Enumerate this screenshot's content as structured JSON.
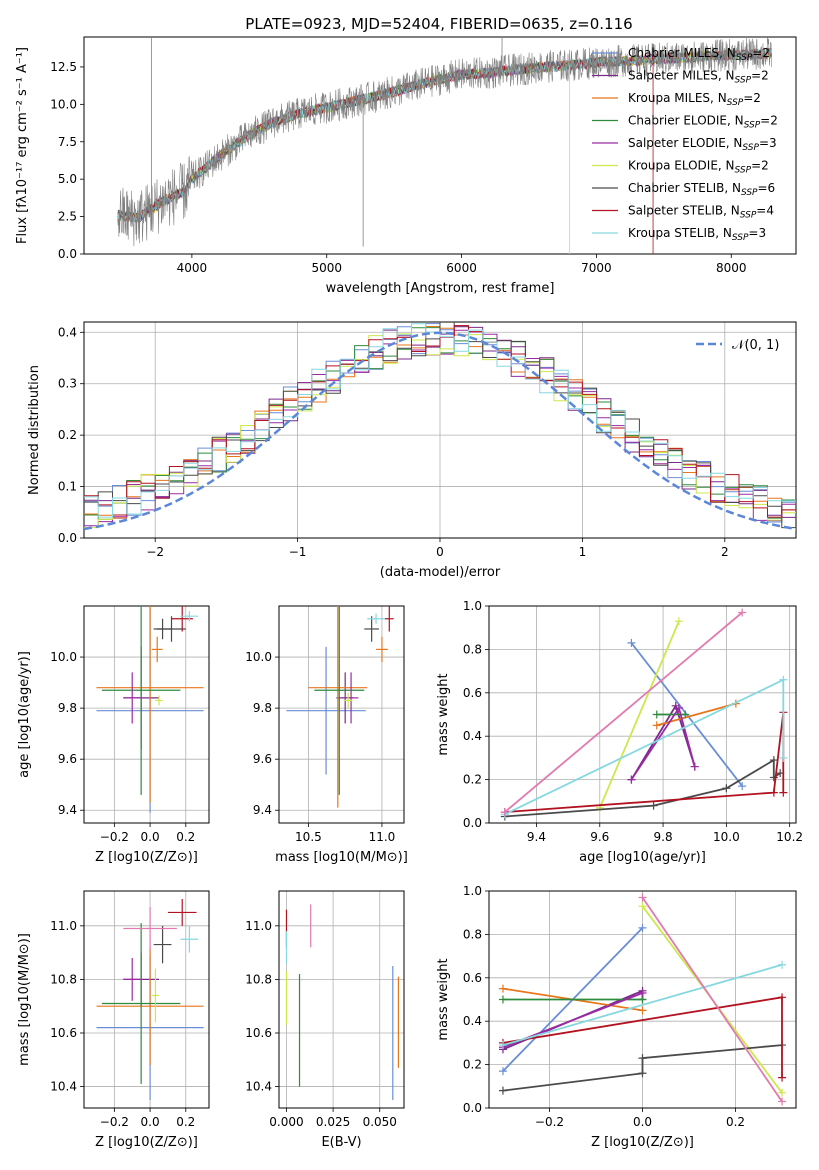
{
  "figure": {
    "title": "PLATE=0923, MJD=52404, FIBERID=0635, z=0.116"
  },
  "models": [
    {
      "name": "Chabrier MILES",
      "nssp": "2",
      "color": "#6a8ed6"
    },
    {
      "name": "Salpeter MILES",
      "nssp": "2",
      "color": "#7a2a8c"
    },
    {
      "name": "Kroupa MILES",
      "nssp": "2",
      "color": "#e8761c"
    },
    {
      "name": "Chabrier ELODIE",
      "nssp": "2",
      "color": "#2e8b3e"
    },
    {
      "name": "Salpeter ELODIE",
      "nssp": "3",
      "color": "#9b2aa3"
    },
    {
      "name": "Kroupa ELODIE",
      "nssp": "2",
      "color": "#cde84a"
    },
    {
      "name": "Chabrier STELIB",
      "nssp": "6",
      "color": "#4a4a4a"
    },
    {
      "name": "Salpeter STELIB",
      "nssp": "4",
      "color": "#b31220"
    },
    {
      "name": "Kroupa STELIB",
      "nssp": "3",
      "color": "#86d8e0"
    }
  ],
  "chart_data": [
    {
      "id": "spectrum",
      "type": "line",
      "xlabel": "wavelength [Angstrom, rest frame]",
      "ylabel": "Flux [fλ10⁻¹⁷ erg cm⁻² s⁻¹ A⁻¹]",
      "xlim": [
        3200,
        8480
      ],
      "ylim": [
        0,
        14.5
      ],
      "xticks": [
        4000,
        5000,
        6000,
        7000,
        8000
      ],
      "yticks": [
        0.0,
        2.5,
        5.0,
        7.5,
        10.0,
        12.5
      ],
      "grid": false,
      "legend": "right",
      "continuum": [
        [
          3450,
          2.6
        ],
        [
          3600,
          2.4
        ],
        [
          3800,
          3.6
        ],
        [
          3950,
          4.2
        ],
        [
          4000,
          5.0
        ],
        [
          4200,
          6.5
        ],
        [
          4400,
          7.8
        ],
        [
          4600,
          8.8
        ],
        [
          4800,
          9.4
        ],
        [
          5000,
          9.8
        ],
        [
          5200,
          10.2
        ],
        [
          5400,
          10.6
        ],
        [
          5600,
          11.1
        ],
        [
          5800,
          11.6
        ],
        [
          6000,
          12.0
        ],
        [
          6200,
          12.1
        ],
        [
          6400,
          12.3
        ],
        [
          6600,
          12.5
        ],
        [
          6800,
          12.6
        ],
        [
          7000,
          12.8
        ],
        [
          7200,
          12.9
        ],
        [
          7400,
          13.0
        ],
        [
          7600,
          13.1
        ],
        [
          8000,
          13.3
        ],
        [
          8300,
          13.4
        ]
      ]
    },
    {
      "id": "residuals",
      "type": "histogram",
      "xlabel": "(data-model)/error",
      "ylabel": "Normed distribution",
      "xlim": [
        -2.5,
        2.5
      ],
      "ylim": [
        0,
        0.42
      ],
      "xticks": [
        -2,
        -1,
        0,
        1,
        2
      ],
      "yticks": [
        0.0,
        0.1,
        0.2,
        0.3,
        0.4
      ],
      "grid": true,
      "legend": "top-right",
      "reference": {
        "label": "𝒩(0, 1)",
        "mean": 0,
        "sigma": 1,
        "color": "#5b87d9"
      },
      "bin_width": 0.1
    },
    {
      "id": "age_vs_Z",
      "type": "errorbar",
      "xlabel": "Z [log10(Z/Z⊙)]",
      "ylabel": "age  [log10(age/yr)]",
      "xlim": [
        -0.37,
        0.33
      ],
      "ylim": [
        9.35,
        10.2
      ],
      "xticks": [
        -0.2,
        0.0,
        0.2
      ],
      "yticks": [
        9.4,
        9.6,
        9.8,
        10.0
      ],
      "grid": true,
      "points": [
        {
          "m": 0,
          "x": 0.0,
          "xerr": 0.3,
          "y": 9.79,
          "yerr": 0.4
        },
        {
          "m": 1,
          "x": -0.05,
          "xerr": 0.1,
          "y": 9.84,
          "yerr": 0.2
        },
        {
          "m": 2,
          "x": 0.0,
          "xerr": 0.3,
          "y": 9.88,
          "yerr": 0.45
        },
        {
          "m": 3,
          "x": -0.05,
          "xerr": 0.22,
          "y": 9.87,
          "yerr": 0.41
        },
        {
          "m": 4,
          "x": -0.1,
          "xerr": 0.05,
          "y": 9.84,
          "yerr": 0.1
        },
        {
          "m": 5,
          "x": 0.05,
          "xerr": 0.02,
          "y": 9.83,
          "yerr": 0.02
        },
        {
          "m": 6,
          "x": 0.12,
          "xerr": 0.08,
          "y": 10.11,
          "yerr": 0.05
        },
        {
          "m": 7,
          "x": 0.18,
          "xerr": 0.06,
          "y": 10.15,
          "yerr": 0.05
        },
        {
          "m": 8,
          "x": 0.22,
          "xerr": 0.05,
          "y": 10.16,
          "yerr": 0.02
        },
        {
          "m": 6,
          "x": 0.07,
          "xerr": 0.05,
          "y": 10.11,
          "yerr": 0.04
        },
        {
          "m": 2,
          "x": 0.04,
          "xerr": 0.03,
          "y": 10.03,
          "yerr": 0.05
        }
      ]
    },
    {
      "id": "age_vs_mass",
      "type": "errorbar",
      "xlabel": "mass [log10(M/M⊙)]",
      "ylabel": "",
      "xlim": [
        10.3,
        11.15
      ],
      "ylim": [
        9.35,
        10.2
      ],
      "xticks": [
        10.5,
        11.0
      ],
      "yticks": [
        9.4,
        9.6,
        9.8,
        10.0
      ],
      "grid": true,
      "points": [
        {
          "m": 0,
          "x": 10.62,
          "xerr": 0.27,
          "y": 9.79,
          "yerr": 0.25
        },
        {
          "m": 1,
          "x": 10.75,
          "xerr": 0.06,
          "y": 9.84,
          "yerr": 0.1
        },
        {
          "m": 2,
          "x": 10.7,
          "xerr": 0.2,
          "y": 9.88,
          "yerr": 0.47
        },
        {
          "m": 3,
          "x": 10.71,
          "xerr": 0.17,
          "y": 9.87,
          "yerr": 0.41
        },
        {
          "m": 4,
          "x": 10.79,
          "xerr": 0.05,
          "y": 9.84,
          "yerr": 0.1
        },
        {
          "m": 5,
          "x": 10.77,
          "xerr": 0.03,
          "y": 9.83,
          "yerr": 0.03
        },
        {
          "m": 6,
          "x": 10.93,
          "xerr": 0.05,
          "y": 10.11,
          "yerr": 0.05
        },
        {
          "m": 7,
          "x": 11.05,
          "xerr": 0.03,
          "y": 10.15,
          "yerr": 0.05
        },
        {
          "m": 8,
          "x": 10.96,
          "xerr": 0.06,
          "y": 10.15,
          "yerr": 0.02
        },
        {
          "m": 2,
          "x": 11.0,
          "xerr": 0.04,
          "y": 10.03,
          "yerr": 0.05
        }
      ]
    },
    {
      "id": "weight_vs_age",
      "type": "line",
      "xlabel": "age  [log10(age/yr)]",
      "ylabel": "mass weight",
      "xlim": [
        9.25,
        10.22
      ],
      "ylim": [
        0,
        1
      ],
      "xticks": [
        9.4,
        9.6,
        9.8,
        10.0,
        10.2
      ],
      "yticks": [
        0.0,
        0.2,
        0.4,
        0.6,
        0.8,
        1.0
      ],
      "grid": true,
      "series": [
        {
          "m": 0,
          "x": [
            9.7,
            10.05
          ],
          "y": [
            0.83,
            0.17
          ]
        },
        {
          "m": 1,
          "x": [
            9.7,
            9.84,
            9.9
          ],
          "y": [
            0.2,
            0.54,
            0.26
          ]
        },
        {
          "m": 2,
          "x": [
            9.78,
            10.03
          ],
          "y": [
            0.45,
            0.55
          ]
        },
        {
          "m": 3,
          "x": [
            9.78,
            9.87
          ],
          "y": [
            0.5,
            0.5
          ]
        },
        {
          "m": 4,
          "x": [
            9.7,
            9.85,
            9.9
          ],
          "y": [
            0.2,
            0.53,
            0.26
          ]
        },
        {
          "m": 5,
          "x": [
            9.6,
            9.85
          ],
          "y": [
            0.07,
            0.93
          ]
        },
        {
          "m": 6,
          "x": [
            9.3,
            9.77,
            10.0,
            10.15,
            10.15,
            10.17
          ],
          "y": [
            0.03,
            0.08,
            0.16,
            0.29,
            0.21,
            0.23
          ]
        },
        {
          "m": 7,
          "x": [
            9.3,
            10.15,
            10.18,
            10.18
          ],
          "y": [
            0.05,
            0.14,
            0.51,
            0.14
          ]
        },
        {
          "m": 8,
          "x": [
            9.3,
            10.18,
            10.18
          ],
          "y": [
            0.04,
            0.66,
            0.3
          ]
        },
        {
          "m": 2,
          "x": [
            9.3,
            10.05
          ],
          "y": [
            0.05,
            0.97
          ],
          "pink": true
        }
      ]
    },
    {
      "id": "mass_vs_Z",
      "type": "errorbar",
      "xlabel": "Z [log10(Z/Z⊙)]",
      "ylabel": "mass [log10(M/M⊙)]",
      "xlim": [
        -0.37,
        0.33
      ],
      "ylim": [
        10.32,
        11.13
      ],
      "xticks": [
        -0.2,
        0.0,
        0.2
      ],
      "yticks": [
        10.4,
        10.6,
        10.8,
        11.0
      ],
      "grid": true,
      "points": [
        {
          "m": 0,
          "x": 0.0,
          "xerr": 0.3,
          "y": 10.62,
          "yerr": 0.27
        },
        {
          "m": 1,
          "x": -0.05,
          "xerr": 0.1,
          "y": 10.8,
          "yerr": 0.1
        },
        {
          "m": 2,
          "x": 0.0,
          "xerr": 0.3,
          "y": 10.7,
          "yerr": 0.22
        },
        {
          "m": 3,
          "x": -0.05,
          "xerr": 0.22,
          "y": 10.71,
          "yerr": 0.3
        },
        {
          "m": 4,
          "x": -0.1,
          "xerr": 0.05,
          "y": 10.8,
          "yerr": 0.08
        },
        {
          "m": 5,
          "x": 0.03,
          "xerr": 0.02,
          "y": 10.74,
          "yerr": 0.1
        },
        {
          "m": 6,
          "x": 0.07,
          "xerr": 0.05,
          "y": 10.93,
          "yerr": 0.07
        },
        {
          "m": 7,
          "x": 0.18,
          "xerr": 0.08,
          "y": 11.05,
          "yerr": 0.05
        },
        {
          "m": 8,
          "x": 0.22,
          "xerr": 0.05,
          "y": 10.95,
          "yerr": 0.05
        },
        {
          "m": 2,
          "x": 0.0,
          "xerr": 0.15,
          "y": 10.99,
          "yerr": 0.08,
          "pink": true
        }
      ]
    },
    {
      "id": "mass_vs_ebv",
      "type": "errorbar",
      "xlabel": "E(B-V)",
      "ylabel": "",
      "xlim": [
        -0.004,
        0.063
      ],
      "ylim": [
        10.32,
        11.13
      ],
      "xticks": [
        0.0,
        0.025,
        0.05
      ],
      "xticklabels": [
        "0.000",
        "0.025",
        "0.050"
      ],
      "yticks": [
        10.4,
        10.6,
        10.8,
        11.0
      ],
      "grid": true,
      "points": [
        {
          "m": 0,
          "x": 0.057,
          "xerr": 0,
          "y": 10.6,
          "yerr": 0.25
        },
        {
          "m": 2,
          "x": 0.06,
          "xerr": 0,
          "y": 10.64,
          "yerr": 0.17
        },
        {
          "m": 3,
          "x": 0.007,
          "xerr": 0,
          "y": 10.61,
          "yerr": 0.21
        },
        {
          "m": 7,
          "x": 0.0,
          "xerr": 0,
          "y": 10.99,
          "yerr": 0.07
        },
        {
          "m": 8,
          "x": 0.0,
          "xerr": 0,
          "y": 10.92,
          "yerr": 0.06
        },
        {
          "m": 5,
          "x": 0.0,
          "xerr": 0,
          "y": 10.73,
          "yerr": 0.1
        },
        {
          "m": 2,
          "x": 0.013,
          "xerr": 0,
          "y": 11.0,
          "yerr": 0.08,
          "pink": true
        }
      ]
    },
    {
      "id": "weight_vs_Z",
      "type": "line",
      "xlabel": "Z [log10(Z/Z⊙)]",
      "ylabel": "mass weight",
      "xlim": [
        -0.33,
        0.33
      ],
      "ylim": [
        0,
        1
      ],
      "xticks": [
        -0.2,
        0.0,
        0.2
      ],
      "yticks": [
        0.0,
        0.2,
        0.4,
        0.6,
        0.8,
        1.0
      ],
      "grid": true,
      "series": [
        {
          "m": 0,
          "x": [
            -0.3,
            0.0
          ],
          "y": [
            0.17,
            0.83
          ]
        },
        {
          "m": 1,
          "x": [
            -0.3,
            0.0,
            0.0
          ],
          "y": [
            0.27,
            0.54,
            0.5
          ]
        },
        {
          "m": 2,
          "x": [
            -0.3,
            0.0
          ],
          "y": [
            0.55,
            0.45
          ]
        },
        {
          "m": 3,
          "x": [
            -0.3,
            0.0
          ],
          "y": [
            0.5,
            0.5
          ]
        },
        {
          "m": 4,
          "x": [
            -0.3,
            0.0
          ],
          "y": [
            0.28,
            0.53
          ]
        },
        {
          "m": 5,
          "x": [
            0.0,
            0.3
          ],
          "y": [
            0.93,
            0.07
          ]
        },
        {
          "m": 6,
          "x": [
            -0.3,
            0.0,
            0.0,
            0.3
          ],
          "y": [
            0.08,
            0.16,
            0.23,
            0.29
          ]
        },
        {
          "m": 7,
          "x": [
            -0.3,
            0.3,
            0.3
          ],
          "y": [
            0.3,
            0.51,
            0.14
          ]
        },
        {
          "m": 8,
          "x": [
            -0.3,
            0.3
          ],
          "y": [
            0.29,
            0.66
          ]
        },
        {
          "m": 2,
          "x": [
            0.0,
            0.3
          ],
          "y": [
            0.97,
            0.03
          ],
          "pink": true
        }
      ]
    }
  ]
}
